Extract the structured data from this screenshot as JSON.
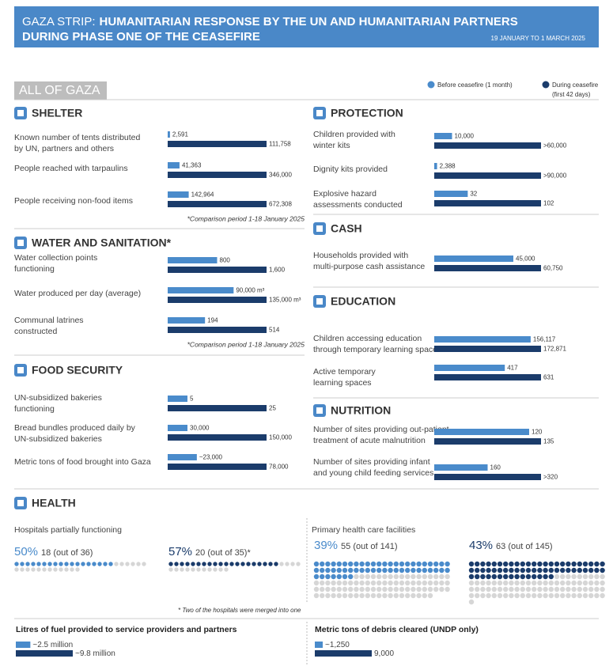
{
  "header": {
    "region": "GAZA STRIP:",
    "title_lines": [
      "HUMANITARIAN RESPONSE BY THE UN AND HUMANITARIAN PARTNERS",
      "DURING PHASE ONE OF THE CEASEFIRE"
    ],
    "period": "19 JANUARY TO 1 MARCH 2025"
  },
  "scope": "ALL OF GAZA",
  "colors": {
    "before": "#4a8bcb",
    "during": "#1b3c6b"
  },
  "legend": {
    "before": "Before ceasefire (1 month)",
    "during": [
      "During ceasefire",
      "(first 42 days)"
    ]
  },
  "sections": [
    {
      "title": "SHELTER",
      "note": "*Comparison period 1-18 January 2025",
      "items": [
        {
          "label": [
            "Known number of tents distributed",
            "by UN, partners and others"
          ],
          "before": {
            "value": 2591,
            "label": "2,591"
          },
          "during": {
            "value": 111758,
            "label": "111,758"
          }
        },
        {
          "label": [
            "People reached with tarpaulins"
          ],
          "before": {
            "value": 41363,
            "label": "41,363"
          },
          "during": {
            "value": 346000,
            "label": "346,000"
          }
        },
        {
          "label": [
            "People receiving non-food items"
          ],
          "before": {
            "value": 142964,
            "label": "142,964"
          },
          "during": {
            "value": 672308,
            "label": "672,308"
          }
        }
      ]
    },
    {
      "title": "WATER AND SANITATION*",
      "note": "*Comparison period 1-18 January 2025",
      "items": [
        {
          "label": [
            "Water collection points",
            "functioning"
          ],
          "before": 800,
          "during": {
            "value": 1600,
            "label": "1,600"
          }
        },
        {
          "label": [
            "Water produced per day (average)"
          ],
          "before": {
            "value": 90000,
            "label": "90,000 m³"
          },
          "during": {
            "value": 135000,
            "label": "135,000 m³"
          }
        },
        {
          "label": [
            "Communal latrines",
            "constructed"
          ],
          "before": 194,
          "during": 514
        }
      ]
    },
    {
      "title": "FOOD SECURITY",
      "items": [
        {
          "label": [
            "UN-subsidized bakeries",
            "functioning"
          ],
          "before": 5,
          "during": 25
        },
        {
          "label": [
            "Bread bundles produced daily by",
            "UN-subsidized bakeries"
          ],
          "before": {
            "value": 30000,
            "label": "30,000"
          },
          "during": {
            "value": 150000,
            "label": "150,000"
          }
        },
        {
          "label": [
            "Metric tons of food brought into Gaza"
          ],
          "before": {
            "value": 23000,
            "label": "~23,000"
          },
          "during": {
            "value": 78000,
            "label": "78,000"
          }
        }
      ]
    },
    {
      "title": "PROTECTION",
      "items": [
        {
          "label": [
            "Children provided with",
            "winter kits"
          ],
          "before": {
            "value": 10000,
            "label": "10,000"
          },
          "during": {
            "value": 60000,
            "label": ">60,000"
          }
        },
        {
          "label": [
            "Dignity kits provided"
          ],
          "before": {
            "value": 2388,
            "label": "2,388"
          },
          "during": {
            "value": 90000,
            "label": ">90,000"
          }
        },
        {
          "label": [
            "Explosive hazard",
            "assessments conducted"
          ],
          "before": 32,
          "during": 102
        }
      ]
    },
    {
      "title": "CASH",
      "items": [
        {
          "label": [
            "Households provided with",
            "multi-purpose cash assistance"
          ],
          "before": {
            "value": 45000,
            "label": "45,000"
          },
          "during": {
            "value": 60750,
            "label": "60,750"
          }
        }
      ]
    },
    {
      "title": "EDUCATION",
      "items": [
        {
          "label": [
            "Children accessing education",
            "through temporary learning spaces"
          ],
          "before": {
            "value": 156117,
            "label": "156,117"
          },
          "during": {
            "value": 172871,
            "label": "172,871"
          }
        },
        {
          "label": [
            "Active temporary",
            "learning spaces"
          ],
          "before": 417,
          "during": 631
        }
      ]
    },
    {
      "title": "NUTRITION",
      "items": [
        {
          "label": [
            "Number of sites providing out-patient",
            "treatment of acute malnutrition"
          ],
          "before": 120,
          "during": 135
        },
        {
          "label": [
            "Number of sites providing infant",
            "and young child feeding services"
          ],
          "before": 160,
          "during": {
            "value": 320,
            "label": ">320"
          }
        }
      ]
    }
  ],
  "health": {
    "title": "HEALTH",
    "groups": [
      {
        "label": "Hospitals partially functioning",
        "before": {
          "percent": {
            "value": 50,
            "label": "50%"
          },
          "count": {
            "value": 18,
            "label": "18 (out of 36)"
          },
          "total": 36
        },
        "during": {
          "percent": {
            "value": 57,
            "label": "57%"
          },
          "count": {
            "value": 20,
            "label": "20 (out of 35)*"
          },
          "total": 35
        }
      },
      {
        "label": "Primary health care facilities",
        "before": {
          "percent": {
            "value": 39,
            "label": "39%"
          },
          "count": {
            "value": 55,
            "label": "55 (out of 141)"
          },
          "total": 141
        },
        "during": {
          "percent": {
            "value": 43,
            "label": "43%"
          },
          "count": {
            "value": 63,
            "label": "63 (out of 145)"
          },
          "total": 145
        }
      }
    ],
    "footnote": "* Two of the hospitals were merged into one"
  },
  "footer": [
    {
      "title": "Litres of fuel provided to service providers and partners",
      "before": {
        "value": 2500000,
        "label": "~2.5 million"
      },
      "during": {
        "value": 9800000,
        "label": "~9.8 million"
      }
    },
    {
      "title": "Metric tons of debris cleared (UNDP only)",
      "before": {
        "value": 1250,
        "label": "~1,250"
      },
      "during": {
        "value": 9000,
        "label": "9,000"
      }
    }
  ]
}
